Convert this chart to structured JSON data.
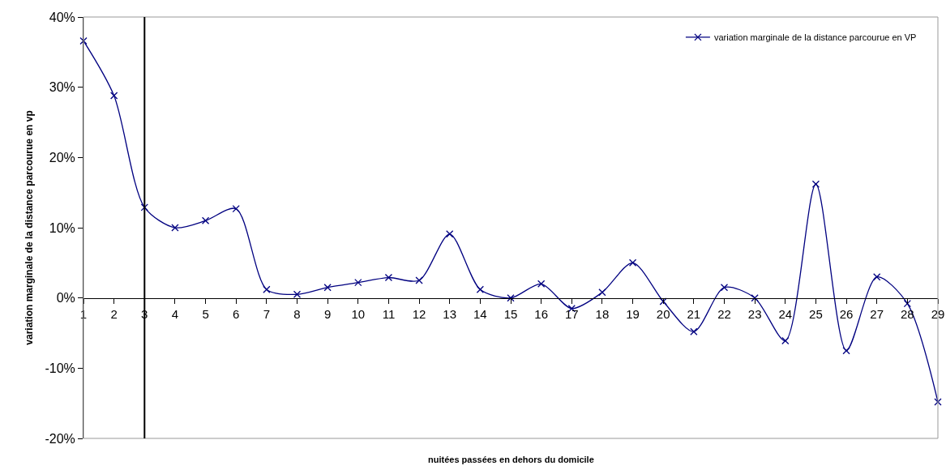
{
  "chart_data": {
    "type": "line",
    "xlabel": "nuitées passées en dehors du domicile",
    "ylabel": "variation marginale de la distance parcourue en vp",
    "x": [
      1,
      2,
      3,
      4,
      5,
      6,
      7,
      8,
      9,
      10,
      11,
      12,
      13,
      14,
      15,
      16,
      17,
      18,
      19,
      20,
      21,
      22,
      23,
      24,
      25,
      26,
      27,
      28,
      29
    ],
    "series": [
      {
        "name": "variation marginale de la distance parcourue en VP",
        "color": "#000080",
        "values": [
          36.6,
          28.8,
          12.9,
          10.0,
          11.0,
          12.7,
          1.2,
          0.5,
          1.5,
          2.2,
          2.9,
          2.5,
          9.1,
          1.2,
          0,
          2.0,
          -1.5,
          0.8,
          5.0,
          -0.5,
          -4.8,
          1.5,
          0,
          -6.1,
          16.2,
          -7.5,
          3.0,
          -0.8,
          -14.8
        ]
      }
    ],
    "xlim": [
      1,
      29
    ],
    "xticks": [
      1,
      2,
      3,
      4,
      5,
      6,
      7,
      8,
      9,
      10,
      11,
      12,
      13,
      14,
      15,
      16,
      17,
      18,
      19,
      20,
      21,
      22,
      23,
      24,
      25,
      26,
      27,
      28,
      29
    ],
    "ylim": [
      -20,
      40
    ],
    "yticks": [
      {
        "value": -20,
        "label": "-20%"
      },
      {
        "value": -10,
        "label": "-10%"
      },
      {
        "value": 0,
        "label": "0%"
      },
      {
        "value": 10,
        "label": "10%"
      },
      {
        "value": 20,
        "label": "20%"
      },
      {
        "value": 30,
        "label": "30%"
      },
      {
        "value": 40,
        "label": "40%"
      }
    ],
    "ref_lines": [
      {
        "axis": "x",
        "value": 3,
        "color": "#000000",
        "line_style": "solid"
      }
    ],
    "grid": false,
    "legend": "top right",
    "marker": "cross",
    "line_style": "solid"
  }
}
